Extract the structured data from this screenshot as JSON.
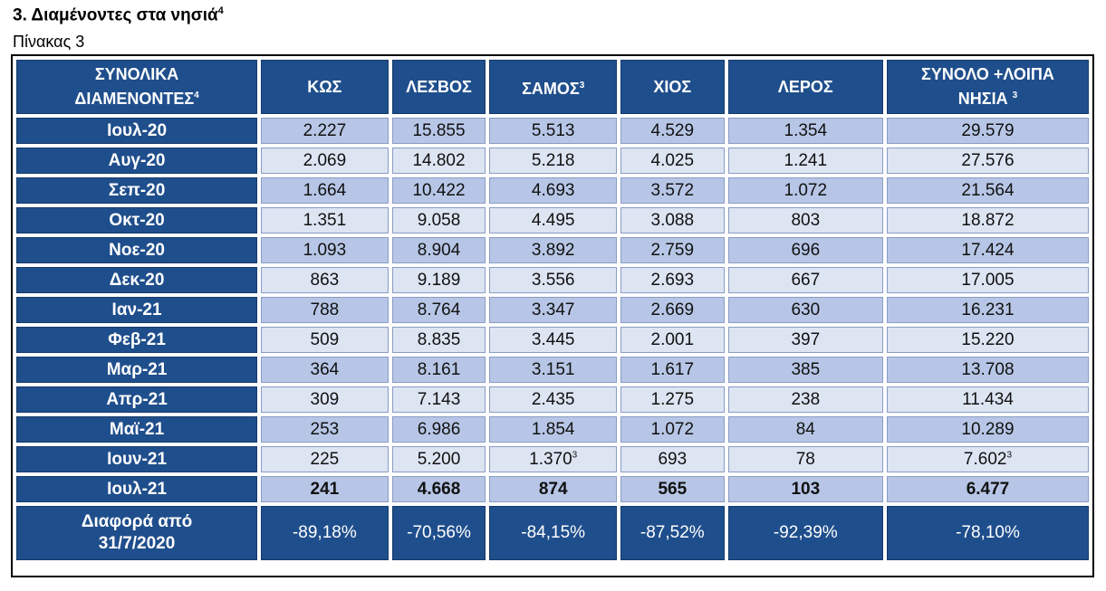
{
  "heading": {
    "text": "3. Διαμένοντες στα νησιά",
    "sup": "4"
  },
  "caption": "Πίνακας 3",
  "table": {
    "header": {
      "col0": {
        "line1": "ΣΥΝΟΛΙΚΑ",
        "line2": "ΔΙΑΜΕΝΟΝΤΕΣ",
        "sup": "4"
      },
      "col1": "ΚΩΣ",
      "col2": "ΛΕΣΒΟΣ",
      "col3": {
        "text": "ΣΑΜΟΣ",
        "sup": "3"
      },
      "col4": "ΧΙΟΣ",
      "col5": "ΛΕΡΟΣ",
      "col6": {
        "line1": "ΣΥΝΟΛΟ +ΛΟΙΠΑ",
        "line2": "ΝΗΣΙΑ",
        "sup": "3"
      }
    },
    "rows": [
      {
        "month": "Ιουλ-20",
        "kos": "2.227",
        "lesvos": "15.855",
        "samos": "5.513",
        "chios": "4.529",
        "leros": "1.354",
        "total": "29.579"
      },
      {
        "month": "Αυγ-20",
        "kos": "2.069",
        "lesvos": "14.802",
        "samos": "5.218",
        "chios": "4.025",
        "leros": "1.241",
        "total": "27.576"
      },
      {
        "month": "Σεπ-20",
        "kos": "1.664",
        "lesvos": "10.422",
        "samos": "4.693",
        "chios": "3.572",
        "leros": "1.072",
        "total": "21.564"
      },
      {
        "month": "Οκτ-20",
        "kos": "1.351",
        "lesvos": "9.058",
        "samos": "4.495",
        "chios": "3.088",
        "leros": "803",
        "total": "18.872"
      },
      {
        "month": "Νοε-20",
        "kos": "1.093",
        "lesvos": "8.904",
        "samos": "3.892",
        "chios": "2.759",
        "leros": "696",
        "total": "17.424"
      },
      {
        "month": "Δεκ-20",
        "kos": "863",
        "lesvos": "9.189",
        "samos": "3.556",
        "chios": "2.693",
        "leros": "667",
        "total": "17.005"
      },
      {
        "month": "Ιαν-21",
        "kos": "788",
        "lesvos": "8.764",
        "samos": "3.347",
        "chios": "2.669",
        "leros": "630",
        "total": "16.231"
      },
      {
        "month": "Φεβ-21",
        "kos": "509",
        "lesvos": "8.835",
        "samos": "3.445",
        "chios": "2.001",
        "leros": "397",
        "total": "15.220"
      },
      {
        "month": "Μαρ-21",
        "kos": "364",
        "lesvos": "8.161",
        "samos": "3.151",
        "chios": "1.617",
        "leros": "385",
        "total": "13.708"
      },
      {
        "month": "Απρ-21",
        "kos": "309",
        "lesvos": "7.143",
        "samos": "2.435",
        "chios": "1.275",
        "leros": "238",
        "total": "11.434"
      },
      {
        "month": "Μαϊ-21",
        "kos": "253",
        "lesvos": "6.986",
        "samos": "1.854",
        "chios": "1.072",
        "leros": "84",
        "total": "10.289"
      },
      {
        "month": "Ιουν-21",
        "kos": "225",
        "lesvos": "5.200",
        "samos": "1.370",
        "samos_sup": "3",
        "chios": "693",
        "leros": "78",
        "total": "7.602",
        "total_sup": "3"
      },
      {
        "month": "Ιουλ-21",
        "kos": "241",
        "lesvos": "4.668",
        "samos": "874",
        "chios": "565",
        "leros": "103",
        "total": "6.477"
      }
    ],
    "diff": {
      "line1": "Διαφορά από",
      "line2": "31/7/2020",
      "kos": "-89,18%",
      "lesvos": "-70,56%",
      "samos": "-84,15%",
      "chios": "-87,52%",
      "leros": "-92,39%",
      "total": "-78,10%"
    }
  }
}
